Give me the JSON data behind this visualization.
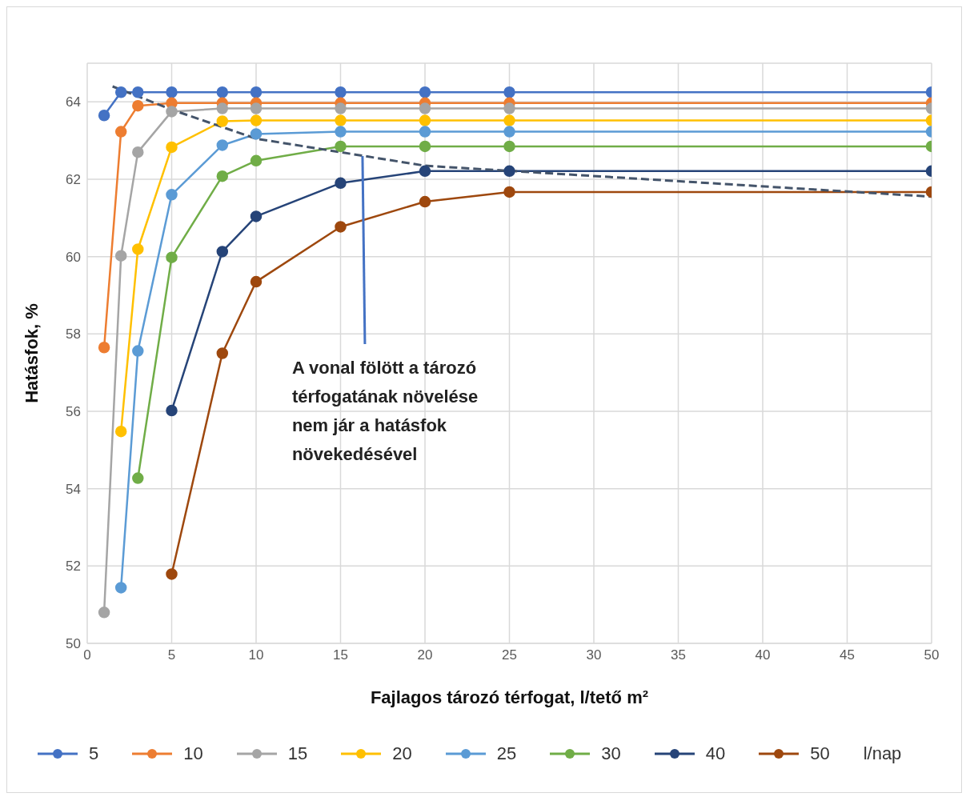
{
  "chart_data": {
    "type": "line",
    "xlabel": "Fajlagos tározó térfogat, l/tető m²",
    "ylabel": "Hatásfok, %",
    "legend_title": "l/nap",
    "x": [
      1,
      2,
      3,
      5,
      8,
      10,
      15,
      20,
      25,
      50
    ],
    "xlim": [
      0,
      50
    ],
    "xticks": [
      0,
      5,
      10,
      15,
      20,
      25,
      30,
      35,
      40,
      45,
      50
    ],
    "ylim": [
      50,
      65
    ],
    "yticks": [
      50,
      52,
      54,
      56,
      58,
      60,
      62,
      64
    ],
    "grid": true,
    "legend": "bottom",
    "marker": "circle",
    "line_style": "solid",
    "series": [
      {
        "name": "5",
        "color": "#4472c4",
        "values": [
          63.65,
          64.25,
          64.25,
          64.25,
          64.25,
          64.25,
          64.25,
          64.25,
          64.25,
          64.25
        ]
      },
      {
        "name": "10",
        "color": "#ed7d31",
        "values": [
          57.65,
          63.23,
          63.9,
          63.97,
          63.97,
          63.97,
          63.97,
          63.97,
          63.97,
          63.97
        ]
      },
      {
        "name": "15",
        "color": "#a5a5a5",
        "values": [
          50.8,
          60.02,
          62.7,
          63.75,
          63.83,
          63.83,
          63.83,
          63.83,
          63.83,
          63.83
        ]
      },
      {
        "name": "20",
        "color": "#ffc000",
        "values": [
          null,
          55.48,
          60.19,
          62.83,
          63.5,
          63.52,
          63.52,
          63.52,
          63.52,
          63.52
        ]
      },
      {
        "name": "25",
        "color": "#5b9bd5",
        "values": [
          null,
          51.44,
          57.56,
          61.6,
          62.88,
          63.17,
          63.23,
          63.23,
          63.23,
          63.23
        ]
      },
      {
        "name": "30",
        "color": "#70ad47",
        "values": [
          null,
          null,
          54.27,
          59.98,
          62.08,
          62.48,
          62.85,
          62.85,
          62.85,
          62.85
        ]
      },
      {
        "name": "40",
        "color": "#264478",
        "values": [
          null,
          null,
          null,
          56.02,
          60.13,
          61.04,
          61.9,
          62.21,
          62.21,
          62.21
        ]
      },
      {
        "name": "50",
        "color": "#9e480e",
        "values": [
          null,
          null,
          null,
          51.79,
          57.5,
          59.35,
          60.77,
          61.42,
          61.67,
          61.67
        ]
      },
      {
        "color": "#44546a",
        "x": [
          1.5,
          5,
          10,
          20,
          50
        ],
        "values": [
          64.4,
          63.8,
          63.05,
          62.35,
          61.55
        ],
        "marker": "none",
        "line_style": "dashed"
      }
    ],
    "annotations": [
      {
        "text": "A vonal fölött a tározó\ntérfogatának növelése\nnem jár a hatásfok\nnövekedésével",
        "x": 16.3,
        "y": 62.6
      }
    ]
  }
}
